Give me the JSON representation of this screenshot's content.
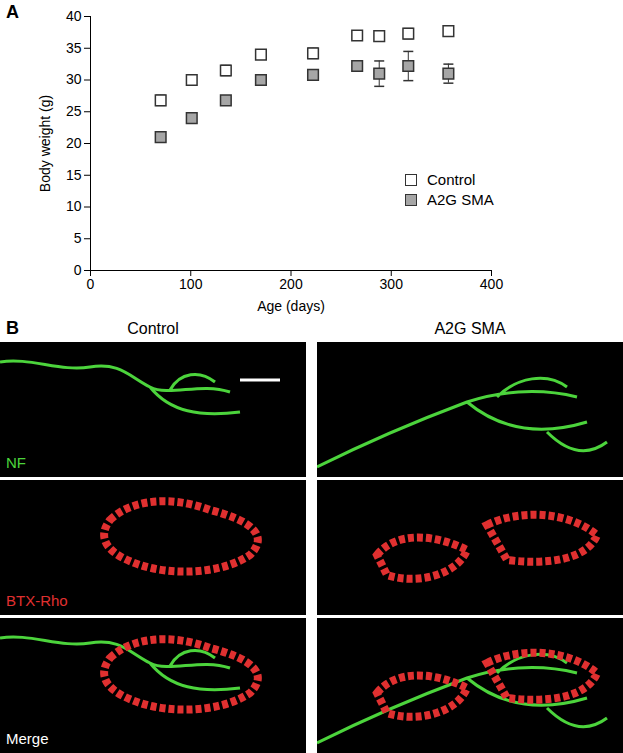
{
  "chart_data": {
    "type": "scatter",
    "annotations": [
      "A"
    ],
    "x_label": "Age (days)",
    "y_label": "Body weight (g)",
    "x": [
      70,
      101,
      135,
      170,
      222,
      266,
      288,
      317,
      357
    ],
    "series": [
      {
        "name": "Control",
        "color": "#ffffff",
        "marker": "square",
        "values": [
          26.8,
          30.0,
          31.5,
          34.0,
          34.2,
          37.0,
          36.9,
          37.3,
          37.7
        ],
        "error": [
          0.8,
          0.7,
          0.8,
          0.7,
          0.8,
          0.7,
          0.7,
          0.8,
          0.7
        ]
      },
      {
        "name": "A2G SMA",
        "color": "#a6a6a6",
        "marker": "square",
        "values": [
          21.0,
          24.0,
          26.8,
          30.0,
          30.8,
          32.2,
          31.0,
          32.2,
          31.0
        ],
        "error": [
          0.5,
          0.4,
          0.6,
          0.5,
          0.8,
          0.6,
          2.0,
          2.3,
          1.5
        ]
      }
    ],
    "xlim": [
      0,
      400
    ],
    "xticks": [
      0,
      100,
      200,
      300,
      400
    ],
    "ylim": [
      0,
      40
    ],
    "yticks": [
      0,
      5,
      10,
      15,
      20,
      25,
      30,
      35,
      40
    ],
    "grid": false,
    "legend": "right"
  },
  "panel_b": {
    "label": "B",
    "columns": [
      "Control",
      "A2G SMA"
    ],
    "rows": [
      {
        "label": "NF",
        "color": "#4cd43c"
      },
      {
        "label": "BTX-Rho",
        "color": "#e03030"
      },
      {
        "label": "Merge",
        "color": "#ffffff"
      }
    ]
  }
}
